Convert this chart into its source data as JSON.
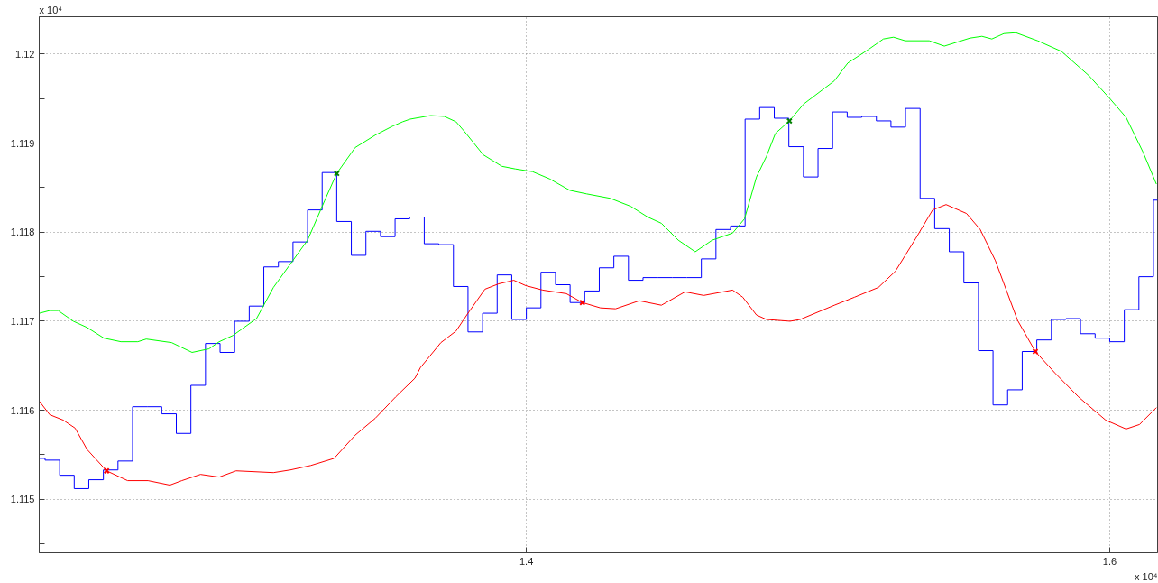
{
  "chart_data": {
    "type": "line",
    "xlim": [
      1.233,
      1.6164
    ],
    "ylim": [
      1.1144,
      1.12042
    ],
    "xticks": [
      1.4,
      1.6
    ],
    "yticks": [
      {
        "value": 1.1145,
        "label": null
      },
      1.115,
      {
        "value": 1.1155,
        "label": null
      },
      1.116,
      {
        "value": 1.1165,
        "label": null
      },
      1.117,
      {
        "value": 1.1175,
        "label": null
      },
      1.118,
      {
        "value": 1.1185,
        "label": null
      },
      1.119,
      {
        "value": 1.1195,
        "label": null
      },
      1.12
    ],
    "grid": true,
    "line_style": "solid",
    "annotations": [
      "x 10⁴",
      "x 10⁴"
    ],
    "series": [
      {
        "type": "step",
        "color": "#0000ff",
        "x": [
          1.233,
          1.235,
          1.24,
          1.245,
          1.25,
          1.255,
          1.26,
          1.265,
          1.27,
          1.275,
          1.28,
          1.285,
          1.29,
          1.295,
          1.3,
          1.305,
          1.31,
          1.315,
          1.32,
          1.325,
          1.33,
          1.335,
          1.34,
          1.345,
          1.35,
          1.355,
          1.36,
          1.365,
          1.37,
          1.375,
          1.38,
          1.385,
          1.39,
          1.395,
          1.4,
          1.405,
          1.41,
          1.415,
          1.42,
          1.425,
          1.43,
          1.435,
          1.44,
          1.445,
          1.45,
          1.455,
          1.46,
          1.465,
          1.47,
          1.475,
          1.48,
          1.485,
          1.49,
          1.495,
          1.5,
          1.505,
          1.51,
          1.515,
          1.52,
          1.525,
          1.53,
          1.535,
          1.54,
          1.545,
          1.55,
          1.555,
          1.56,
          1.565,
          1.57,
          1.575,
          1.58,
          1.585,
          1.59,
          1.595,
          1.6,
          1.605,
          1.61,
          1.615,
          1.6164
        ],
        "values": [
          1.11546,
          1.11544,
          1.11527,
          1.11512,
          1.11522,
          1.11533,
          1.11543,
          1.11604,
          1.11604,
          1.11596,
          1.11574,
          1.11628,
          1.11675,
          1.11665,
          1.117,
          1.11717,
          1.11761,
          1.11767,
          1.11789,
          1.11825,
          1.11867,
          1.11812,
          1.11774,
          1.11801,
          1.11795,
          1.11815,
          1.11817,
          1.11787,
          1.11786,
          1.11739,
          1.11688,
          1.11709,
          1.11752,
          1.11702,
          1.11715,
          1.11755,
          1.11741,
          1.11721,
          1.11734,
          1.1176,
          1.11773,
          1.11746,
          1.11749,
          1.11749,
          1.11749,
          1.11749,
          1.1177,
          1.11803,
          1.11807,
          1.11927,
          1.1194,
          1.11928,
          1.11896,
          1.11862,
          1.11894,
          1.11935,
          1.11929,
          1.1193,
          1.11925,
          1.11918,
          1.11939,
          1.11838,
          1.11804,
          1.11778,
          1.11743,
          1.11667,
          1.11606,
          1.11623,
          1.11666,
          1.11679,
          1.11702,
          1.11703,
          1.11686,
          1.11681,
          1.11677,
          1.11713,
          1.1175,
          1.11836,
          1.11836
        ]
      },
      {
        "color": "#00ff00",
        "x": [
          1.2331,
          1.2366,
          1.2395,
          1.2447,
          1.2494,
          1.2552,
          1.261,
          1.2668,
          1.2697,
          1.2784,
          1.2854,
          1.2912,
          1.2947,
          1.2994,
          1.3075,
          1.3133,
          1.325,
          1.3308,
          1.335,
          1.3413,
          1.3482,
          1.3541,
          1.3576,
          1.3602,
          1.3672,
          1.3719,
          1.3759,
          1.3788,
          1.3852,
          1.3916,
          1.3963,
          1.4021,
          1.4079,
          1.4149,
          1.4207,
          1.4288,
          1.4358,
          1.4416,
          1.4463,
          1.4521,
          1.4579,
          1.4637,
          1.4707,
          1.4748,
          1.4789,
          1.4823,
          1.4854,
          1.4902,
          1.4951,
          1.5056,
          1.5102,
          1.5172,
          1.5224,
          1.5259,
          1.5299,
          1.5381,
          1.5433,
          1.5521,
          1.5562,
          1.5596,
          1.5637,
          1.5678,
          1.5753,
          1.5835,
          1.5928,
          1.5998,
          1.6056,
          1.6114,
          1.616
        ],
        "values": [
          1.11709,
          1.11712,
          1.11712,
          1.117,
          1.11693,
          1.11681,
          1.11677,
          1.11677,
          1.1168,
          1.11676,
          1.11665,
          1.11669,
          1.11677,
          1.11684,
          1.11703,
          1.11738,
          1.11791,
          1.11835,
          1.11866,
          1.11895,
          1.11909,
          1.11919,
          1.11924,
          1.11927,
          1.11931,
          1.1193,
          1.11924,
          1.11913,
          1.11887,
          1.11874,
          1.11871,
          1.11868,
          1.1186,
          1.11847,
          1.11843,
          1.11838,
          1.11829,
          1.11817,
          1.1181,
          1.11791,
          1.11778,
          1.11791,
          1.11799,
          1.11815,
          1.11862,
          1.11885,
          1.11911,
          1.11925,
          1.11944,
          1.1197,
          1.1199,
          1.12005,
          1.12017,
          1.12019,
          1.12015,
          1.12015,
          1.12009,
          1.12018,
          1.1202,
          1.12017,
          1.12023,
          1.12024,
          1.12015,
          1.12003,
          1.11976,
          1.11951,
          1.11929,
          1.1189,
          1.11854
        ]
      },
      {
        "color": "#ff0000",
        "x": [
          1.2331,
          1.2366,
          1.2412,
          1.2453,
          1.2494,
          1.2561,
          1.2633,
          1.2703,
          1.2778,
          1.2819,
          1.2883,
          1.2947,
          1.3005,
          1.3133,
          1.3191,
          1.3261,
          1.3341,
          1.3413,
          1.3482,
          1.3552,
          1.3618,
          1.3637,
          1.3707,
          1.3759,
          1.38,
          1.3858,
          1.3905,
          1.3957,
          1.3998,
          1.4056,
          1.4137,
          1.4192,
          1.4254,
          1.4306,
          1.4387,
          1.4463,
          1.4544,
          1.4608,
          1.4707,
          1.4742,
          1.4789,
          1.4823,
          1.4904,
          1.4939,
          1.5056,
          1.5125,
          1.5207,
          1.5265,
          1.5335,
          1.5393,
          1.5439,
          1.5509,
          1.5556,
          1.5608,
          1.5684,
          1.5745,
          1.5812,
          1.5893,
          1.5986,
          1.6056,
          1.6102,
          1.616
        ],
        "values": [
          1.1161,
          1.11595,
          1.11589,
          1.1158,
          1.11556,
          1.11532,
          1.11521,
          1.11521,
          1.11516,
          1.11521,
          1.11528,
          1.11525,
          1.11532,
          1.1153,
          1.11533,
          1.11538,
          1.11546,
          1.11572,
          1.11591,
          1.11615,
          1.11636,
          1.11648,
          1.11676,
          1.11689,
          1.11709,
          1.11736,
          1.11742,
          1.11746,
          1.1174,
          1.11735,
          1.11731,
          1.11721,
          1.11715,
          1.11714,
          1.11723,
          1.11718,
          1.11733,
          1.11729,
          1.11735,
          1.11727,
          1.11707,
          1.11702,
          1.117,
          1.11702,
          1.11718,
          1.11727,
          1.11738,
          1.11756,
          1.11793,
          1.11825,
          1.11831,
          1.11821,
          1.11803,
          1.11768,
          1.11701,
          1.11666,
          1.11642,
          1.11615,
          1.11589,
          1.11579,
          1.11584,
          1.11603
        ]
      },
      {
        "type": "scatter",
        "marker": "cross",
        "color": "#ff0000",
        "x": [
          1.2561,
          1.4192,
          1.5745
        ],
        "values": [
          1.11532,
          1.11721,
          1.11666
        ]
      },
      {
        "type": "scatter",
        "marker": "cross",
        "color": "#008000",
        "x": [
          1.335,
          1.4902
        ],
        "values": [
          1.11866,
          1.11925
        ]
      }
    ]
  }
}
